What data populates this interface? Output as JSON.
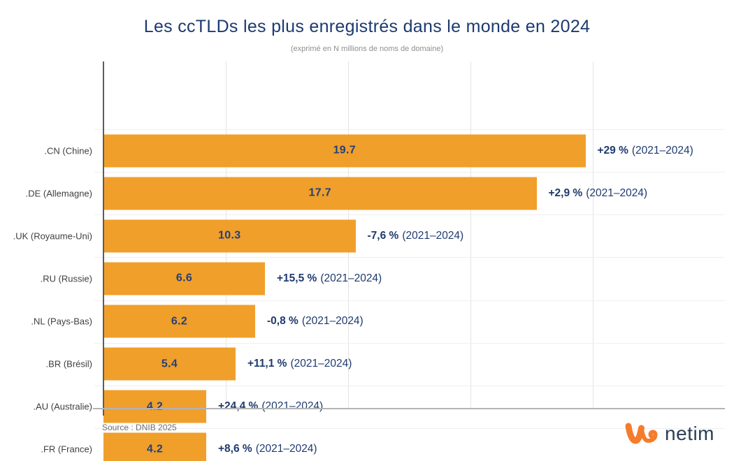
{
  "page": {
    "title": "Les ccTLDs les plus enregistrés dans le monde en 2024",
    "subtitle": "(exprimé en N millions de noms de domaine)",
    "source": "Source : DNIB 2025",
    "logo_text": "netim"
  },
  "colors": {
    "bar": "#f09f2b",
    "title_text": "#1c3a70",
    "value_text": "#24407a",
    "annotation_text": "#1e3a6e",
    "category_text": "#3f3f3f",
    "axis": "#5d5d5d",
    "baseline": "#b4b4b4",
    "gridline": "#e4e4e4",
    "logo_orange": "#f57c2a",
    "logo_navy": "#2a3e55"
  },
  "chart_data": {
    "type": "bar",
    "orientation": "horizontal",
    "title": "Les ccTLDs les plus enregistrés dans le monde en 2024",
    "subtitle": "(exprimé en N millions de noms de domaine)",
    "unit": "millions de noms de domaine",
    "xlim": [
      0,
      25.4
    ],
    "x_gridlines": [
      5,
      10,
      15,
      20
    ],
    "grid": true,
    "legend": "none",
    "categories": [
      ".CN (Chine)",
      ".DE (Allemagne)",
      ".UK (Royaume-Uni)",
      ".RU (Russie)",
      ".NL (Pays-Bas)",
      ".BR (Brésil)",
      ".AU (Australie)",
      ".FR (France)"
    ],
    "values": [
      19.7,
      17.7,
      10.3,
      6.6,
      6.2,
      5.4,
      4.2,
      4.2
    ],
    "value_labels": [
      "19.7",
      "17.7",
      "10.3",
      "6.6",
      "6.2",
      "5.4",
      "4.2",
      "4.2"
    ],
    "annotations": [
      {
        "change": "+29 %",
        "period": "(2021–2024)"
      },
      {
        "change": "+2,9 %",
        "period": "(2021–2024)"
      },
      {
        "change": "-7,6 %",
        "period": "(2021–2024)"
      },
      {
        "change": "+15,5 %",
        "period": "(2021–2024)"
      },
      {
        "change": "-0,8 %",
        "period": "(2021–2024)"
      },
      {
        "change": "+11,1 %",
        "period": "(2021–2024)"
      },
      {
        "change": "+24,4 %",
        "period": "(2021–2024)"
      },
      {
        "change": "+8,6 %",
        "period": "(2021–2024)"
      }
    ],
    "source": "Source : DNIB 2025"
  }
}
